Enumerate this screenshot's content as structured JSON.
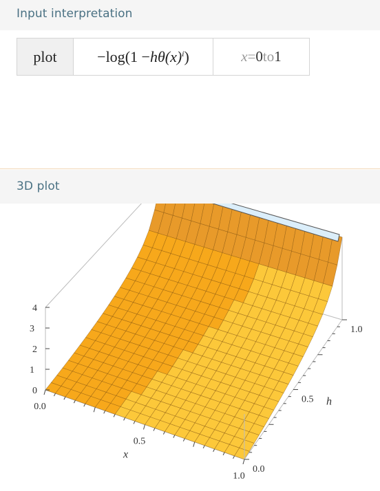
{
  "pods": {
    "input": {
      "title": "Input interpretation",
      "command": "plot",
      "expression": {
        "minus": "−",
        "log": "log",
        "open": "(",
        "one_minus": "1 − ",
        "h": "h",
        "theta": " θ",
        "x_paren": "(x)",
        "exponent": "i",
        "close": ")"
      },
      "range": {
        "var": "x",
        "eq": " = ",
        "from": "0",
        "to": " to ",
        "end": "1"
      }
    },
    "plot3d": {
      "title": "3D plot"
    }
  },
  "chart_data": {
    "type": "surface3d",
    "function": "−log(1 − h θ(x)^i)",
    "x_range": [
      0,
      1
    ],
    "h_range": [
      0,
      1
    ],
    "z_range": [
      0,
      4
    ],
    "xlabel": "x",
    "ylabel": "h",
    "x_ticks": [
      "0.0",
      "0.5",
      "1.0"
    ],
    "h_ticks": [
      "0.0",
      "0.5",
      "1.0"
    ],
    "z_ticks": [
      "0",
      "1",
      "2",
      "3",
      "4"
    ],
    "colors": {
      "surface": "#f7a81b",
      "surface_light": "#fcc83a",
      "mesh": "#7a4a0a",
      "box": "#bbbbbb"
    }
  }
}
